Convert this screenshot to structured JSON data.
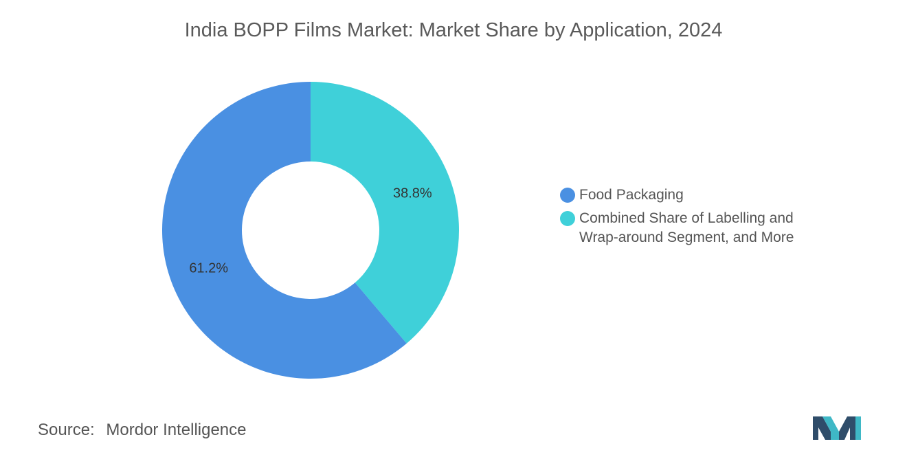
{
  "title": "India BOPP Films Market: Market Share by Application, 2024",
  "chart_data": {
    "type": "pie",
    "subtype": "donut",
    "title": "India BOPP Films Market: Market Share by Application, 2024",
    "categories": [
      "Food Packaging",
      "Combined Share of Labelling and Wrap-around Segment, and More"
    ],
    "values": [
      61.2,
      38.8
    ],
    "value_labels": [
      "61.2%",
      "38.8%"
    ],
    "colors": [
      "#4a90e2",
      "#3fd0d9"
    ],
    "legend_position": "right"
  },
  "legend": {
    "items": [
      {
        "label": "Food Packaging",
        "color": "#4a90e2"
      },
      {
        "label_line1": "Combined Share of Labelling and",
        "label_line2": "Wrap-around Segment, and More",
        "color": "#3fd0d9"
      }
    ]
  },
  "source": {
    "prefix": "Source:",
    "name": "Mordor Intelligence"
  },
  "logo": {
    "icon": "mordor-intelligence-logo-icon"
  }
}
